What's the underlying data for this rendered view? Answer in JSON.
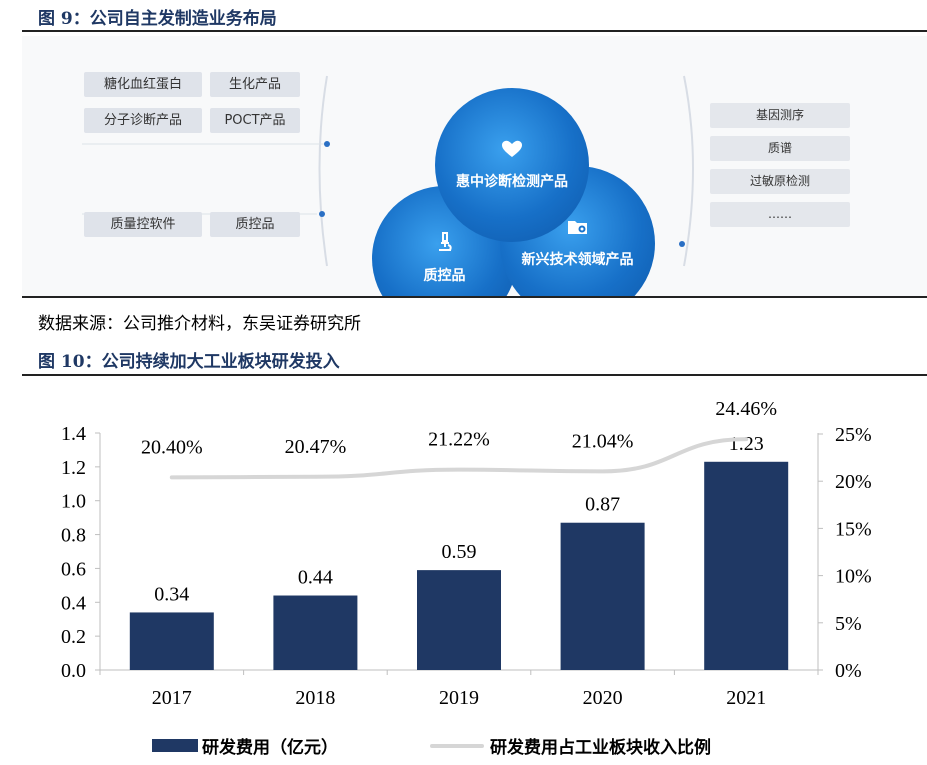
{
  "figure9": {
    "title": "图 9：公司自主发制造业务布局",
    "source": "数据来源：公司推介材料，东吴证券研究所",
    "left_tags": [
      "糖化血红蛋白",
      "生化产品",
      "分子诊断产品",
      "POCT产品",
      "质量控软件",
      "质控品"
    ],
    "right_tags": [
      "基因测序",
      "质谱",
      "过敏原检测",
      "……"
    ],
    "circles": [
      {
        "label": "惠中诊断检测产品",
        "icon": "handshake-heart-icon"
      },
      {
        "label": "质控品",
        "icon": "microscope-icon"
      },
      {
        "label": "新兴技术领域产品",
        "icon": "folder-gear-icon"
      }
    ]
  },
  "figure10": {
    "title": "图 10：公司持续加大工业板块研发投入"
  },
  "chart_data": {
    "type": "bar",
    "categories": [
      "2017",
      "2018",
      "2019",
      "2020",
      "2021"
    ],
    "series": [
      {
        "name": "研发费用（亿元）",
        "type": "bar",
        "axis": "left",
        "values": [
          0.34,
          0.44,
          0.59,
          0.87,
          1.23
        ],
        "labels": [
          "0.34",
          "0.44",
          "0.59",
          "0.87",
          "1.23"
        ],
        "color": "#1f3864"
      },
      {
        "name": "研发费用占工业板块收入比例",
        "type": "line",
        "axis": "right",
        "values": [
          20.4,
          20.47,
          21.22,
          21.04,
          24.46
        ],
        "labels": [
          "20.40%",
          "20.47%",
          "21.22%",
          "21.04%",
          "24.46%"
        ],
        "color": "#d6d6d6"
      }
    ],
    "ylim_left": [
      0,
      1.4
    ],
    "yticks_left": [
      "0.0",
      "0.2",
      "0.4",
      "0.6",
      "0.8",
      "1.0",
      "1.2",
      "1.4"
    ],
    "ylim_right": [
      0,
      25
    ],
    "yticks_right": [
      "0%",
      "5%",
      "10%",
      "15%",
      "20%",
      "25%"
    ],
    "legend_position": "bottom",
    "grid": false
  }
}
